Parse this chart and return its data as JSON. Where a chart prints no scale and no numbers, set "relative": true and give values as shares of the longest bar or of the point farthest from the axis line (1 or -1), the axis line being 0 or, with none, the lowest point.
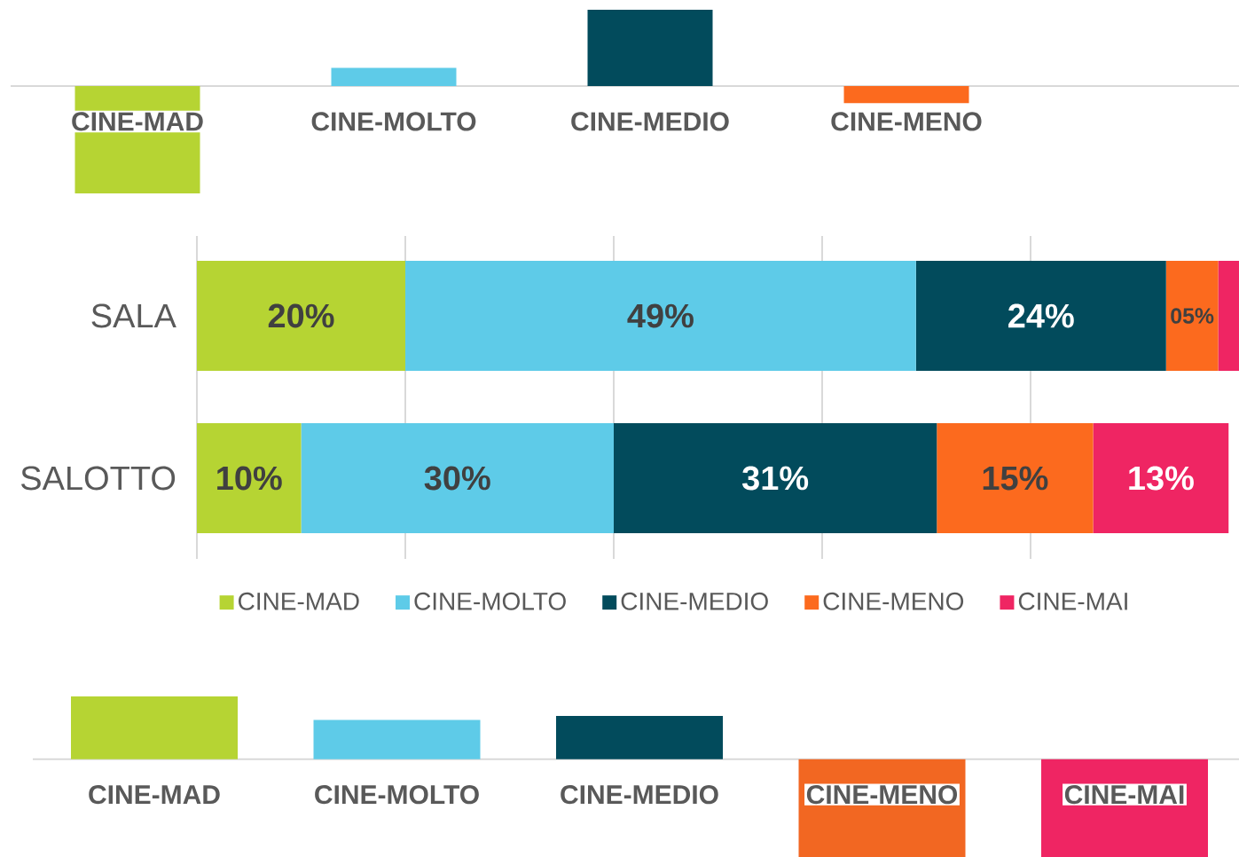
{
  "chart_data": [
    {
      "type": "bar",
      "relative": true,
      "categories": [
        "CINE-MAD",
        "CINE-MOLTO",
        "CINE-MEDIO",
        "CINE-MENO"
      ],
      "values": [
        -1,
        0.17,
        0.71,
        -0.16
      ],
      "colors": [
        "#b6d433",
        "#5ecbe8",
        "#024b5c",
        "#fc6a1e"
      ]
    },
    {
      "type": "bar",
      "orientation": "horizontal",
      "stacked": true,
      "categories": [
        "SALA",
        "SALOTTO"
      ],
      "xlim": [
        0,
        100
      ],
      "xticks": [
        {
          "value": 0,
          "label": null
        },
        {
          "value": 20,
          "label": null
        },
        {
          "value": 40,
          "label": null
        },
        {
          "value": 60,
          "label": null
        },
        {
          "value": 80,
          "label": null
        }
      ],
      "grid": "x",
      "legend": "bottom",
      "series": [
        {
          "name": "CINE-MAD",
          "color": "#b6d433",
          "values": [
            20,
            10
          ],
          "value_labels": [
            "20%",
            "10%"
          ]
        },
        {
          "name": "CINE-MOLTO",
          "color": "#5ecbe8",
          "values": [
            49,
            30
          ],
          "value_labels": [
            "49%",
            "30%"
          ]
        },
        {
          "name": "CINE-MEDIO",
          "color": "#024b5c",
          "values": [
            24,
            31
          ],
          "value_labels": [
            "24%",
            "31%"
          ]
        },
        {
          "name": "CINE-MENO",
          "color": "#fc6a1e",
          "values": [
            5,
            15
          ],
          "value_labels": [
            "05%",
            "15%"
          ]
        },
        {
          "name": "CINE-MAI",
          "color": "#ef2563",
          "values": [
            2,
            13
          ],
          "value_labels": [
            null,
            "13%"
          ]
        }
      ]
    },
    {
      "type": "bar",
      "relative": true,
      "categories": [
        "CINE-MAD",
        "CINE-MOLTO",
        "CINE-MEDIO",
        "CINE-MENO",
        "CINE-MAI"
      ],
      "values": [
        0.64,
        0.4,
        0.44,
        -1,
        -1
      ],
      "colors": [
        "#b6d433",
        "#5ecbe8",
        "#024b5c",
        "#f26722",
        "#ef2563"
      ]
    }
  ]
}
